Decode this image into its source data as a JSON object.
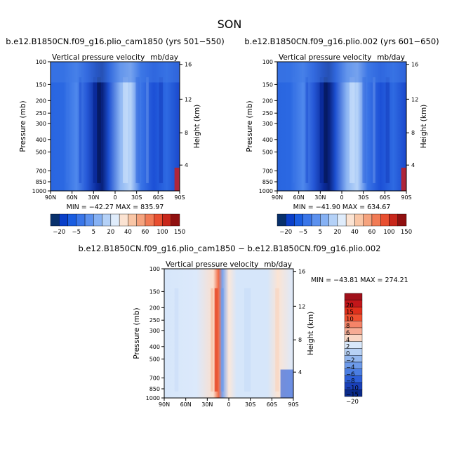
{
  "page_title": "SON",
  "chart_data": [
    {
      "type": "heatmap",
      "title": "b.e12.B1850CN.f09_g16.plio_cam1850 (yrs 501−550)",
      "subtitle_left": "Vertical pressure velocity",
      "subtitle_right": "mb/day",
      "xlabel": "",
      "ylabel": "Pressure (mb)",
      "ylabel_right": "Height (km)",
      "x_ticks": [
        "90N",
        "60N",
        "30N",
        "0",
        "30S",
        "60S",
        "90S"
      ],
      "y_ticks": [
        "100",
        "150",
        "200",
        "250",
        "300",
        "400",
        "500",
        "700",
        "850",
        "1000"
      ],
      "y_right_ticks": [
        "16",
        "12",
        "8",
        "4"
      ],
      "stats": "MIN = −42.27   MAX = 835.97",
      "colorbar_labels": [
        "−20",
        "−5",
        "5",
        "20",
        "40",
        "60",
        "100",
        "150"
      ],
      "ylim": [
        1000,
        100
      ],
      "log_y": true
    },
    {
      "type": "heatmap",
      "title": "b.e12.B1850CN.f09_g16.plio.002 (yrs 601−650)",
      "subtitle_left": "Vertical pressure velocity",
      "subtitle_right": "mb/day",
      "xlabel": "",
      "ylabel": "Pressure (mb)",
      "ylabel_right": "Height (km)",
      "x_ticks": [
        "90N",
        "60N",
        "30N",
        "0",
        "30S",
        "60S",
        "90S"
      ],
      "y_ticks": [
        "100",
        "150",
        "200",
        "250",
        "300",
        "400",
        "500",
        "700",
        "850",
        "1000"
      ],
      "y_right_ticks": [
        "16",
        "12",
        "8",
        "4"
      ],
      "stats": "MIN = −41.90   MAX = 634.67",
      "colorbar_labels": [
        "−20",
        "−5",
        "5",
        "20",
        "40",
        "60",
        "100",
        "150"
      ],
      "ylim": [
        1000,
        100
      ],
      "log_y": true
    },
    {
      "type": "heatmap",
      "title": "b.e12.B1850CN.f09_g16.plio_cam1850 − b.e12.B1850CN.f09_g16.plio.002",
      "subtitle_left": "Vertical pressure velocity",
      "subtitle_right": "mb/day",
      "xlabel": "",
      "ylabel": "Pressure (mb)",
      "ylabel_right": "Height (km)",
      "x_ticks": [
        "90N",
        "60N",
        "30N",
        "0",
        "30S",
        "60S",
        "90S"
      ],
      "y_ticks": [
        "100",
        "150",
        "200",
        "250",
        "300",
        "400",
        "500",
        "700",
        "850",
        "1000"
      ],
      "y_right_ticks": [
        "16",
        "12",
        "8",
        "4"
      ],
      "stats": "MIN = −43.81   MAX = 274.21",
      "colorbar_labels": [
        "20",
        "15",
        "10",
        "8",
        "6",
        "4",
        "2",
        "0",
        "−2",
        "−4",
        "−6",
        "−8",
        "−10",
        "−15",
        "−20"
      ],
      "ylim": [
        1000,
        100
      ],
      "log_y": true
    }
  ],
  "colors": {
    "abs_scale": [
      "#08306b",
      "#0a3fc8",
      "#1a5de0",
      "#3a76e8",
      "#5c91ee",
      "#86b1f3",
      "#b4d1f7",
      "#dfecfb",
      "#fbe3d2",
      "#f9c6a6",
      "#f5a37e",
      "#f17b55",
      "#e84f30",
      "#c8271b",
      "#901010"
    ],
    "diff_scale": [
      "#a0101a",
      "#c2161a",
      "#e0301c",
      "#f05030",
      "#f58468",
      "#f7ac94",
      "#fad7c4",
      "#d9e8fa",
      "#b7d1f5",
      "#93b7ef",
      "#6d9ae9",
      "#4b7ee2",
      "#2d5fd8",
      "#1a40b8",
      "#0a2a8a"
    ]
  }
}
